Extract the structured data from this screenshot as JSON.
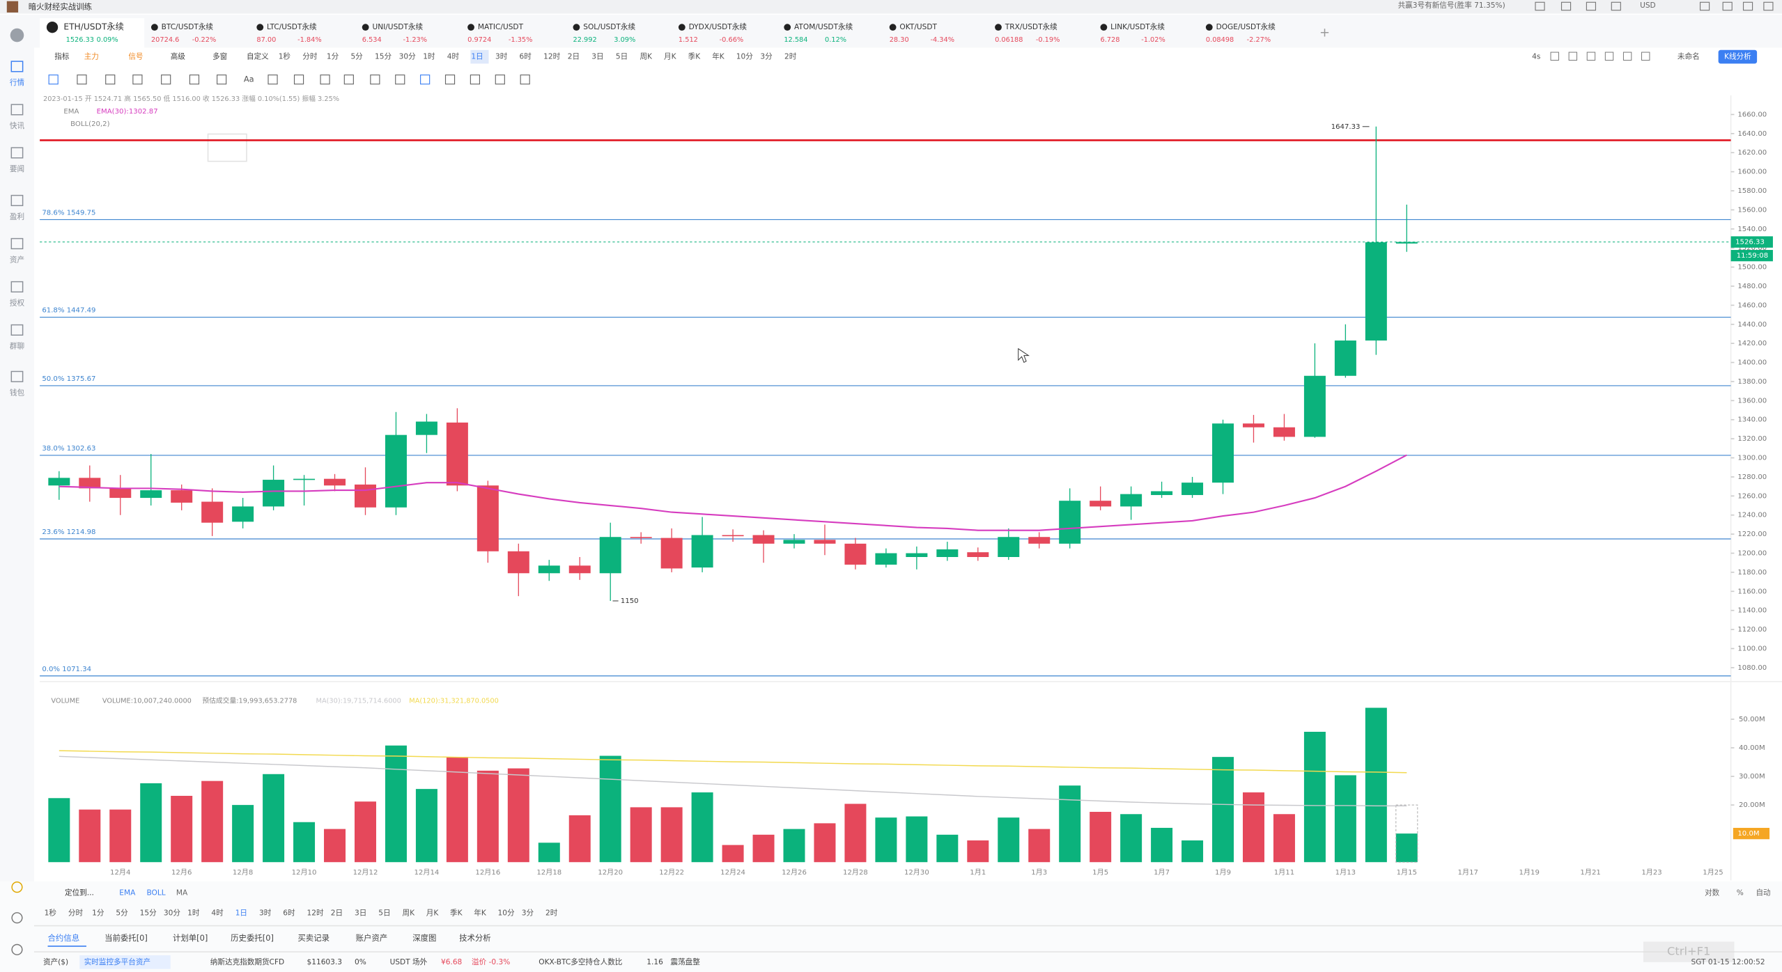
{
  "app_title": "暗火财经实战训练",
  "top_right": {
    "signal": "共赢3号有新信号(胜率 71.35%)",
    "currency": "USD"
  },
  "tickers": [
    {
      "name": "ETH/USDT永续",
      "price": "1526.33",
      "change": "0.09%"
    },
    {
      "name": "BTC/USDT永续",
      "price": "20724.6",
      "change": "-0.22%"
    },
    {
      "name": "LTC/USDT永续",
      "price": "87.00",
      "change": "-1.84%"
    },
    {
      "name": "UNI/USDT永续",
      "price": "6.534",
      "change": "-1.23%"
    },
    {
      "name": "MATIC/USDT",
      "price": "0.9724",
      "change": "-1.35%"
    },
    {
      "name": "SOL/USDT永续",
      "price": "22.992",
      "change": "3.09%"
    },
    {
      "name": "DYDX/USDT永续",
      "price": "1.512",
      "change": "-0.66%"
    },
    {
      "name": "ATOM/USDT永续",
      "price": "12.584",
      "change": "0.12%"
    },
    {
      "name": "OKT/USDT",
      "price": "28.30",
      "change": "-4.34%"
    },
    {
      "name": "TRX/USDT永续",
      "price": "0.06188",
      "change": "-0.19%"
    },
    {
      "name": "LINK/USDT永续",
      "price": "6.728",
      "change": "-1.02%"
    },
    {
      "name": "DOGE/USDT永续",
      "price": "0.08498",
      "change": "-2.27%"
    }
  ],
  "sidebar": [
    "行情",
    "快讯",
    "要闻",
    "盈利",
    "资产",
    "授权",
    "群聊",
    "钱包"
  ],
  "toolbar": {
    "items": [
      "指标",
      "主力",
      "信号",
      "高级",
      "多窗",
      "自定义"
    ],
    "periods": [
      "1秒",
      "分时",
      "1分",
      "5分",
      "15分",
      "30分",
      "1时",
      "4时",
      "1日",
      "3时",
      "6时",
      "12时",
      "2日",
      "3日",
      "5日",
      "周K",
      "月K",
      "季K",
      "年K",
      "10分",
      "3分",
      "2时"
    ],
    "active_period": "1日",
    "timer": "4s",
    "layout_name": "未命名",
    "analysis_button": "K线分析",
    "text_tool": "Aa"
  },
  "chart_data": {
    "type": "candlestick",
    "ohlc_label": "2023-01-15 开 1524.71 高 1565.50 低 1516.00 收 1526.33 涨幅 0.10%(1.55) 振幅 3.25%",
    "categories": [
      null,
      null,
      "12月4",
      null,
      "12月6",
      null,
      "12月8",
      null,
      "12月10",
      null,
      "12月12",
      null,
      "12月14",
      null,
      "12月16",
      null,
      "12月18",
      null,
      "12月20",
      null,
      "12月22",
      null,
      "12月24",
      null,
      "12月26",
      null,
      "12月28",
      null,
      "12月30",
      null,
      "1月1",
      null,
      "1月3",
      null,
      "1月5",
      null,
      "1月7",
      null,
      "1月9",
      null,
      "1月11",
      null,
      "1月13",
      null,
      "1月15"
    ],
    "extra_categories": [
      "1月17",
      "1月19",
      "1月21",
      "1月23",
      "1月25"
    ],
    "open": [
      1271,
      1279,
      1268,
      1258,
      1266,
      1254,
      1233,
      1249,
      1277,
      1278,
      1272,
      1248,
      1324,
      1337,
      1271,
      1202,
      1179,
      1187,
      1179,
      1217,
      1216,
      1185,
      1219,
      1219,
      1210,
      1214,
      1210,
      1188,
      1196,
      1196,
      1201,
      1196,
      1217,
      1210,
      1255,
      1249,
      1261,
      1261,
      1274,
      1336,
      1332,
      1322,
      1386,
      1423,
      1524.71
    ],
    "high": [
      1286,
      1292,
      1282,
      1304,
      1272,
      1268,
      1258,
      1292,
      1282,
      1283,
      1290,
      1348,
      1346,
      1352,
      1276,
      1210,
      1193,
      1196,
      1232,
      1222,
      1226,
      1238,
      1225,
      1224,
      1220,
      1230,
      1216,
      1205,
      1207,
      1212,
      1206,
      1226,
      1222,
      1268,
      1270,
      1270,
      1275,
      1280,
      1340,
      1345,
      1346,
      1420,
      1440,
      1647.33,
      1565.5
    ],
    "low": [
      1256,
      1254,
      1240,
      1250,
      1245,
      1218,
      1226,
      1245,
      1250,
      1265,
      1240,
      1240,
      1305,
      1265,
      1190,
      1155,
      1171,
      1172,
      1150,
      1210,
      1180,
      1180,
      1212,
      1190,
      1205,
      1198,
      1183,
      1185,
      1183,
      1192,
      1192,
      1193,
      1205,
      1205,
      1245,
      1235,
      1258,
      1258,
      1262,
      1316,
      1318,
      1321,
      1384,
      1408,
      1516
    ],
    "close": [
      1279,
      1268,
      1258,
      1266,
      1253,
      1232,
      1249,
      1277,
      1278,
      1271,
      1248,
      1324,
      1338,
      1271,
      1202,
      1179,
      1187,
      1179,
      1217,
      1216,
      1184,
      1219,
      1218,
      1210,
      1214,
      1210,
      1188,
      1200,
      1200,
      1204,
      1196,
      1217,
      1210,
      1255,
      1249,
      1262,
      1265,
      1274,
      1336,
      1332,
      1322,
      1386,
      1423,
      1526,
      1526.33
    ],
    "up_color": "#0bb27c",
    "down_color": "#e5485b",
    "ylim": [
      1069,
      1680
    ],
    "yticks": [
      {
        "value": 1660,
        "label": "1660.00"
      },
      {
        "value": 1640,
        "label": "1640.00"
      },
      {
        "value": 1620,
        "label": "1620.00"
      },
      {
        "value": 1600,
        "label": "1600.00"
      },
      {
        "value": 1580,
        "label": "1580.00"
      },
      {
        "value": 1560,
        "label": "1560.00"
      },
      {
        "value": 1540,
        "label": "1540.00"
      },
      {
        "value": 1520,
        "label": "1520.00"
      },
      {
        "value": 1500,
        "label": "1500.00"
      },
      {
        "value": 1480,
        "label": "1480.00"
      },
      {
        "value": 1460,
        "label": "1460.00"
      },
      {
        "value": 1440,
        "label": "1440.00"
      },
      {
        "value": 1420,
        "label": "1420.00"
      },
      {
        "value": 1400,
        "label": "1400.00"
      },
      {
        "value": 1380,
        "label": "1380.00"
      },
      {
        "value": 1360,
        "label": "1360.00"
      },
      {
        "value": 1340,
        "label": "1340.00"
      },
      {
        "value": 1320,
        "label": "1320.00"
      },
      {
        "value": 1300,
        "label": "1300.00"
      },
      {
        "value": 1280,
        "label": "1280.00"
      },
      {
        "value": 1260,
        "label": "1260.00"
      },
      {
        "value": 1240,
        "label": "1240.00"
      },
      {
        "value": 1220,
        "label": "1220.00"
      },
      {
        "value": 1200,
        "label": "1200.00"
      },
      {
        "value": 1180,
        "label": "1180.00"
      },
      {
        "value": 1160,
        "label": "1160.00"
      },
      {
        "value": 1140,
        "label": "1140.00"
      },
      {
        "value": 1120,
        "label": "1120.00"
      },
      {
        "value": 1100,
        "label": "1100.00"
      },
      {
        "value": 1080,
        "label": "1080.00"
      }
    ],
    "countdown": "11:59:08",
    "ema": {
      "name": "EMA",
      "label": "EMA(30):1302.87",
      "color": "#d63cbf",
      "values": [
        1270,
        1269,
        1268,
        1268,
        1267,
        1265,
        1264,
        1265,
        1265,
        1266,
        1266,
        1270,
        1274,
        1274,
        1268,
        1262,
        1257,
        1253,
        1250,
        1247,
        1243,
        1241,
        1239,
        1237,
        1235,
        1233,
        1231,
        1229,
        1227,
        1226,
        1224,
        1224,
        1224,
        1226,
        1228,
        1230,
        1232,
        1234,
        1239,
        1243,
        1250,
        1258,
        1270,
        1286,
        1302.87
      ]
    },
    "boll_label": "BOLL(20,2)",
    "fib_color": "#3d84cf",
    "fib_levels": [
      {
        "label": "78.6% 1549.75",
        "value": 1549.75
      },
      {
        "label": "61.8% 1447.49",
        "value": 1447.49
      },
      {
        "label": "50.0% 1375.67",
        "value": 1375.67
      },
      {
        "label": "38.0% 1302.63",
        "value": 1302.63
      },
      {
        "label": "23.6% 1214.98",
        "value": 1214.98
      },
      {
        "label": "0.0% 1071.34",
        "value": 1071.34
      }
    ],
    "alert_line": {
      "value": 1633,
      "color": "#e0141f"
    },
    "volume": {
      "name": "VOLUME",
      "label": "VOLUME:10,007,240.0000",
      "estimate_label": "预估成交量:19,993,653.2778",
      "estimate": 19.99,
      "ylim": [
        0,
        60
      ],
      "yticks": [
        {
          "value": 50,
          "label": "50.00M"
        },
        {
          "value": 40,
          "label": "40.00M"
        },
        {
          "value": 30,
          "label": "30.00M"
        },
        {
          "value": 20,
          "label": "20.00M"
        }
      ],
      "last_tag": {
        "value": 10.00724,
        "label": "10.0M"
      },
      "values": [
        22.4,
        18.4,
        18.4,
        27.6,
        23.2,
        28.4,
        20,
        30.8,
        14,
        11.6,
        21.2,
        40.8,
        25.6,
        36.8,
        32,
        32.8,
        6.8,
        16.4,
        37.2,
        19.2,
        19.2,
        24.4,
        6,
        9.6,
        11.6,
        13.6,
        20.4,
        15.6,
        16,
        9.6,
        7.6,
        15.6,
        11.6,
        26.8,
        17.6,
        16.8,
        12,
        7.6,
        36.8,
        24.4,
        16.8,
        45.6,
        30.4,
        54,
        10.00724
      ],
      "ma30": {
        "label": "MA(30):19,715,714.6000",
        "color": "#c8c8cc",
        "values": [
          37,
          36.6,
          36.2,
          35.8,
          35.4,
          35,
          34.6,
          34.2,
          33.8,
          33.4,
          33,
          32.5,
          32,
          31.5,
          31,
          30.5,
          30,
          29.5,
          29,
          28.5,
          28,
          27.5,
          27,
          26.5,
          26,
          25.5,
          25,
          24.5,
          24,
          23.5,
          23,
          22.6,
          22.2,
          21.8,
          21.4,
          21,
          20.7,
          20.4,
          20.2,
          20,
          19.9,
          19.8,
          19.8,
          19.7,
          19.7
        ]
      },
      "ma120": {
        "label": "MA(120):31,321,870.0500",
        "color": "#f2d94e",
        "values": [
          39,
          38.8,
          38.6,
          38.5,
          38.3,
          38.1,
          37.9,
          37.8,
          37.6,
          37.4,
          37.2,
          37.1,
          36.9,
          36.7,
          36.5,
          36.4,
          36.2,
          36,
          35.8,
          35.7,
          35.5,
          35.3,
          35.1,
          35,
          34.8,
          34.6,
          34.4,
          34.3,
          34.1,
          33.9,
          33.7,
          33.6,
          33.4,
          33.2,
          33,
          32.9,
          32.7,
          32.5,
          32.3,
          32.2,
          32,
          31.8,
          31.6,
          31.5,
          31.3
        ]
      }
    }
  },
  "bottom_bar": {
    "locate": "定位到...",
    "indicators": [
      "EMA",
      "BOLL",
      "MA"
    ],
    "scale_options": [
      "对数",
      "%",
      "自动"
    ]
  },
  "tabs": [
    "合约信息",
    "当前委托[0]",
    "计划单[0]",
    "历史委托[0]",
    "买卖记录",
    "账户资产",
    "深度图",
    "技术分析"
  ],
  "status_bar": {
    "assets": "资产($)",
    "monitor": "实时监控多平台资产",
    "nasdaq": "纳斯达克指数期货CFD",
    "nasdaq_price": "$11603.3",
    "nasdaq_change": "0%",
    "usdt": "USDT 场外",
    "usdt_price": "¥6.68",
    "premium": "溢价 -0.3%",
    "ratio_label": "OKX-BTC多空持仓人数比",
    "ratio": "1.16",
    "trend": "震荡盘整",
    "clock": "SGT 01-15 12:00:52",
    "shortcut": "Ctrl+F1"
  }
}
